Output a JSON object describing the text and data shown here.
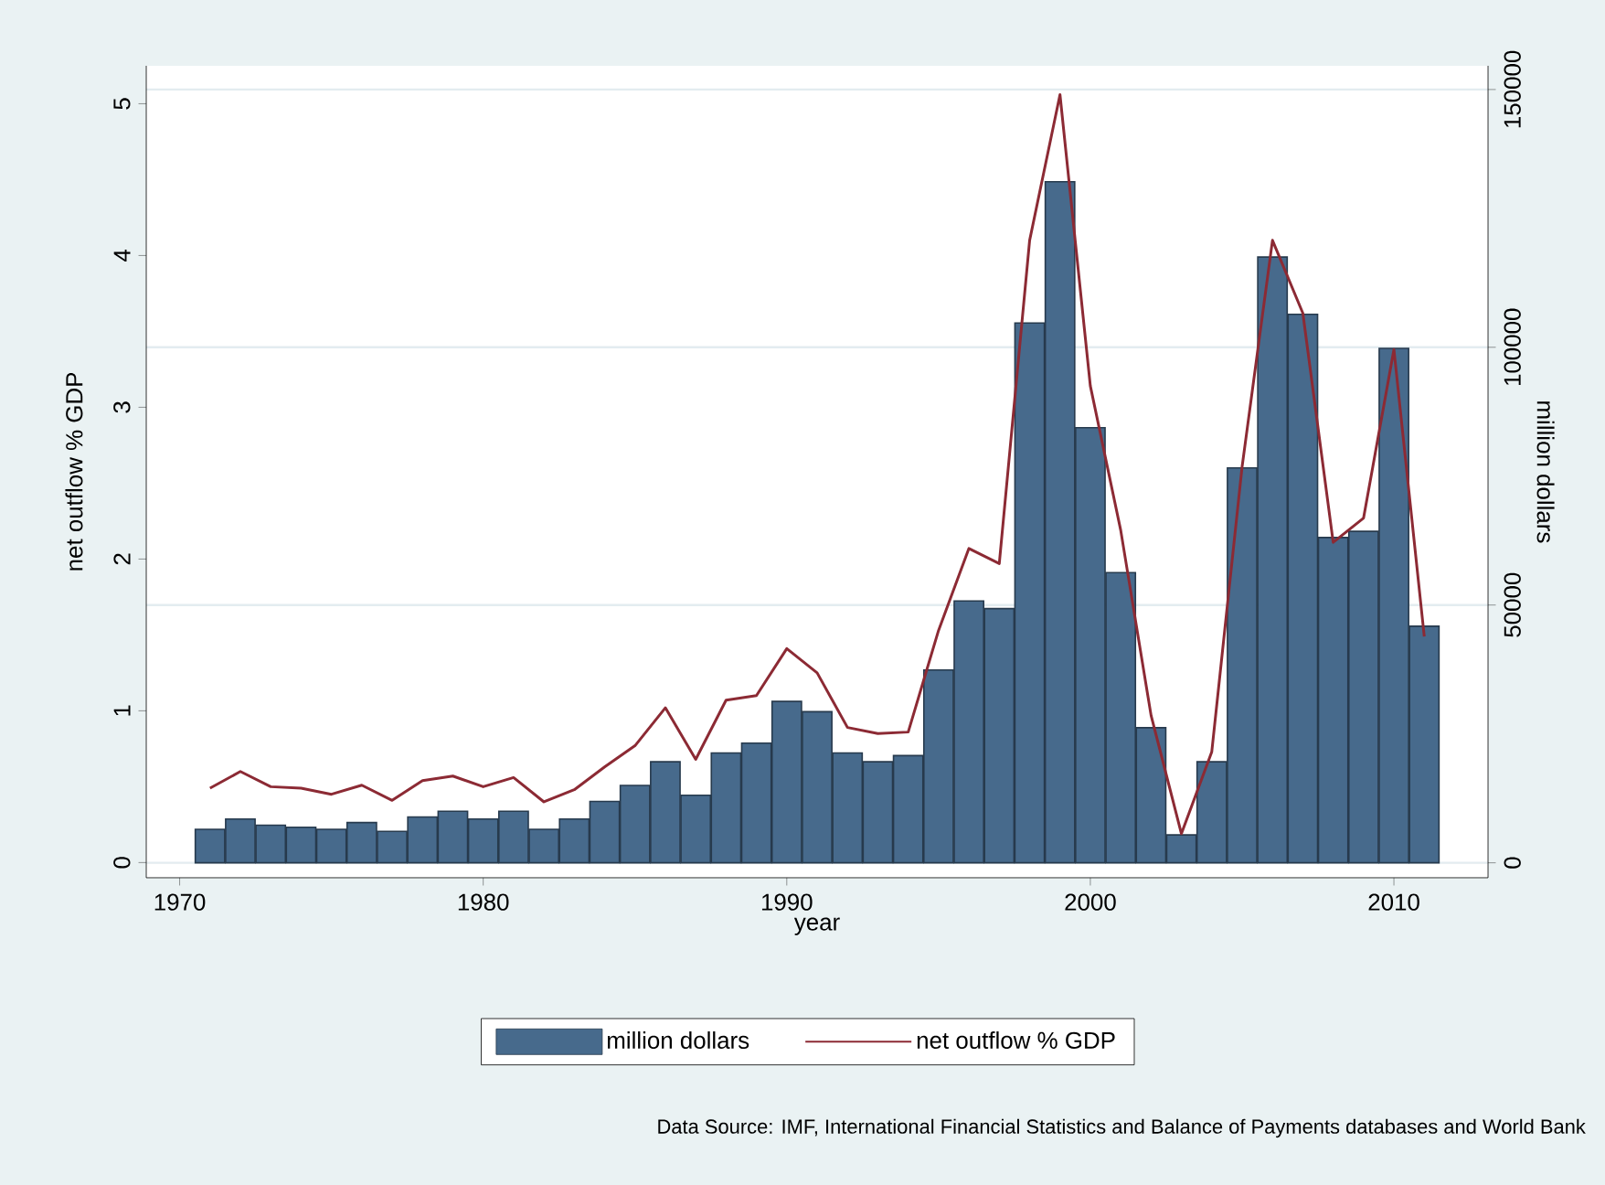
{
  "chart_data": {
    "type": "bar",
    "xlabel": "year",
    "ylabel": "net outflow % GDP",
    "y2label": "million dollars",
    "x": [
      1971,
      1972,
      1973,
      1974,
      1975,
      1976,
      1977,
      1978,
      1979,
      1980,
      1981,
      1982,
      1983,
      1984,
      1985,
      1986,
      1987,
      1988,
      1989,
      1990,
      1991,
      1992,
      1993,
      1994,
      1995,
      1996,
      1997,
      1998,
      1999,
      2000,
      2001,
      2002,
      2003,
      2004,
      2005,
      2006,
      2007,
      2008,
      2009,
      2010,
      2011
    ],
    "series": [
      {
        "name": "million dollars",
        "axis": "y2",
        "color": "#476a8c",
        "values": [
          6500,
          8500,
          7300,
          6900,
          6500,
          7800,
          6100,
          8900,
          10000,
          8500,
          10000,
          6500,
          8500,
          11900,
          15000,
          19600,
          13100,
          21300,
          23200,
          31300,
          29300,
          21300,
          19600,
          20800,
          37400,
          50800,
          49300,
          104700,
          132100,
          84400,
          56300,
          26200,
          5400,
          19600,
          76600,
          117500,
          106400,
          63100,
          64300,
          99800,
          45900
        ]
      },
      {
        "name": "net outflow % GDP",
        "type": "line",
        "axis": "y",
        "color": "#8c2a34",
        "values": [
          0.49,
          0.6,
          0.5,
          0.49,
          0.45,
          0.51,
          0.41,
          0.54,
          0.57,
          0.5,
          0.56,
          0.4,
          0.48,
          0.63,
          0.77,
          1.02,
          0.68,
          1.07,
          1.1,
          1.41,
          1.25,
          0.89,
          0.85,
          0.86,
          1.53,
          2.07,
          1.97,
          4.1,
          5.06,
          3.14,
          2.19,
          0.97,
          0.19,
          0.73,
          2.61,
          4.1,
          3.62,
          2.11,
          2.27,
          3.38,
          1.49
        ]
      }
    ],
    "xlim": [
      1968.9,
      2013.1
    ],
    "xticks": [
      1970,
      1980,
      1990,
      2000,
      2010
    ],
    "ylim": [
      -0.1,
      5.25
    ],
    "yticks": [
      0,
      1,
      2,
      3,
      4,
      5
    ],
    "y2lim": [
      -2900,
      154600
    ],
    "y2ticks": [
      0,
      50000,
      100000,
      150000
    ],
    "grid": "y",
    "legend": "bottom",
    "annotations": [
      "Data Source: IMF, International Financial Statistics and Balance of Payments databases and World Bank"
    ]
  }
}
